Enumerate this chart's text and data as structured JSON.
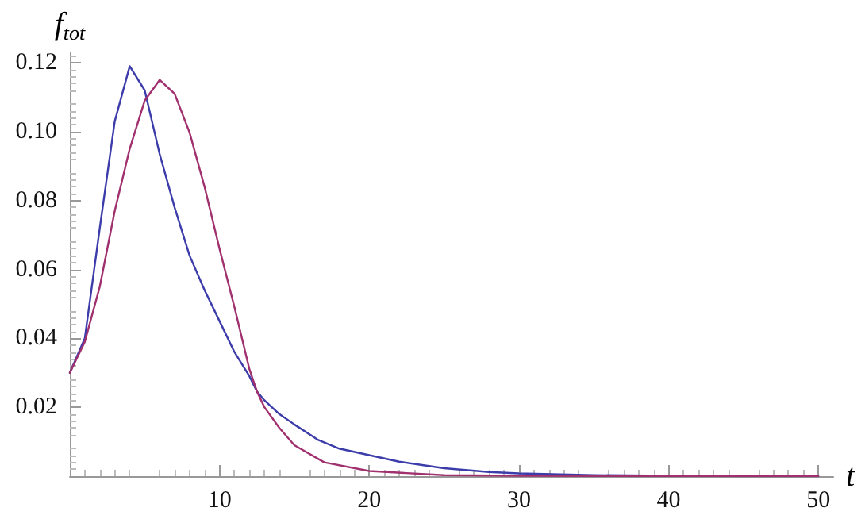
{
  "chart_data": {
    "type": "line",
    "xlabel": "t",
    "ylabel": "f$_{tot}$",
    "xlim": [
      0,
      51
    ],
    "ylim": [
      0,
      0.123
    ],
    "xticks": [
      10,
      20,
      30,
      40,
      50
    ],
    "yticks": [
      0.02,
      0.04,
      0.06,
      0.08,
      {
        "value": 0.1,
        "label": "0.10"
      },
      0.12
    ],
    "grid": false,
    "marker": "none",
    "line_style": "solid",
    "series": [
      {
        "color": "#3c3caa",
        "x": [
          0,
          1,
          2,
          3,
          4,
          5,
          6,
          7,
          8,
          9,
          10,
          11,
          12,
          12.5,
          13,
          14,
          15,
          16.6,
          18,
          20,
          22,
          25,
          28,
          30,
          35,
          40,
          45,
          50
        ],
        "values": [
          0.03,
          0.04,
          0.072,
          0.103,
          0.119,
          0.112,
          0.0935,
          0.078,
          0.064,
          0.054,
          0.045,
          0.036,
          0.029,
          0.0246,
          0.022,
          0.018,
          0.015,
          0.0105,
          0.008,
          0.0061,
          0.0042,
          0.0023,
          0.0012,
          0.0008,
          0.0003,
          0.0001,
          0,
          0
        ]
      },
      {
        "color": "#a0306e",
        "x": [
          0,
          1,
          2,
          3,
          4,
          5,
          6,
          7,
          8,
          9,
          10,
          11,
          12,
          12.5,
          13,
          14,
          15,
          17,
          20,
          25,
          30,
          40,
          50
        ],
        "values": [
          0.03,
          0.039,
          0.055,
          0.077,
          0.095,
          0.109,
          0.115,
          0.111,
          0.0997,
          0.084,
          0.066,
          0.049,
          0.031,
          0.0246,
          0.02,
          0.014,
          0.009,
          0.004,
          0.0015,
          0.0003,
          0.0001,
          0,
          0
        ]
      }
    ]
  }
}
